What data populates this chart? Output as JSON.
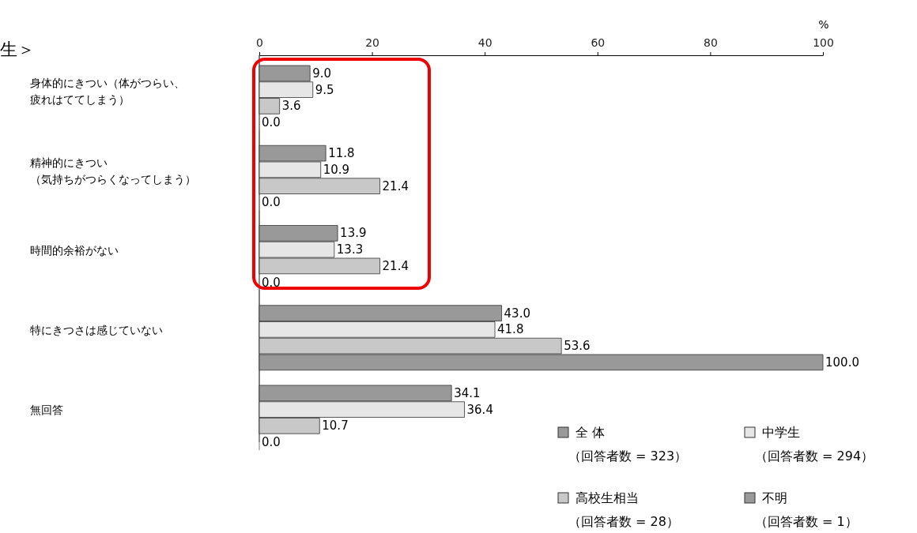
{
  "chart_data": {
    "type": "bar",
    "orientation": "horizontal",
    "title": "生＞",
    "xlabel": "%",
    "categories": [
      "身体的にきつい（体がつらい、疲れはててしまう）",
      "精神的にきつい（気持ちがつらくなってしまう）",
      "時間的余裕がない",
      "特にきつさは感じていない",
      "無回答"
    ],
    "series": [
      {
        "name": "全 体（回答者数 = 323）",
        "color": "#999999",
        "values": [
          9.0,
          11.8,
          13.9,
          43.0,
          34.1
        ],
        "value_labels": [
          "9.0",
          "11.8",
          "13.9",
          "43.0",
          "34.1"
        ]
      },
      {
        "name": "中学生（回答者数 = 294）",
        "color": "#e6e6e6",
        "values": [
          9.5,
          10.9,
          13.3,
          41.8,
          36.4
        ],
        "value_labels": [
          "9.5",
          "10.9",
          "13.3",
          "41.8",
          "36.4"
        ]
      },
      {
        "name": "高校生相当（回答者数 = 28）",
        "color": "#c8c8c8",
        "values": [
          3.6,
          21.4,
          21.4,
          53.6,
          10.7
        ],
        "value_labels": [
          "3.6",
          "21.4",
          "21.4",
          "53.6",
          "10.7"
        ]
      },
      {
        "name": "不明（回答者数 = 1）",
        "color": "#999999",
        "values": [
          0.0,
          0.0,
          0.0,
          100.0,
          0.0
        ],
        "value_labels": [
          "0.0",
          "0.0",
          "0.0",
          "100.0",
          "0.0"
        ]
      }
    ],
    "xlim": [
      0,
      100
    ],
    "xticks": [
      0,
      20,
      40,
      60,
      80,
      100
    ],
    "legend": "bottom right"
  }
}
